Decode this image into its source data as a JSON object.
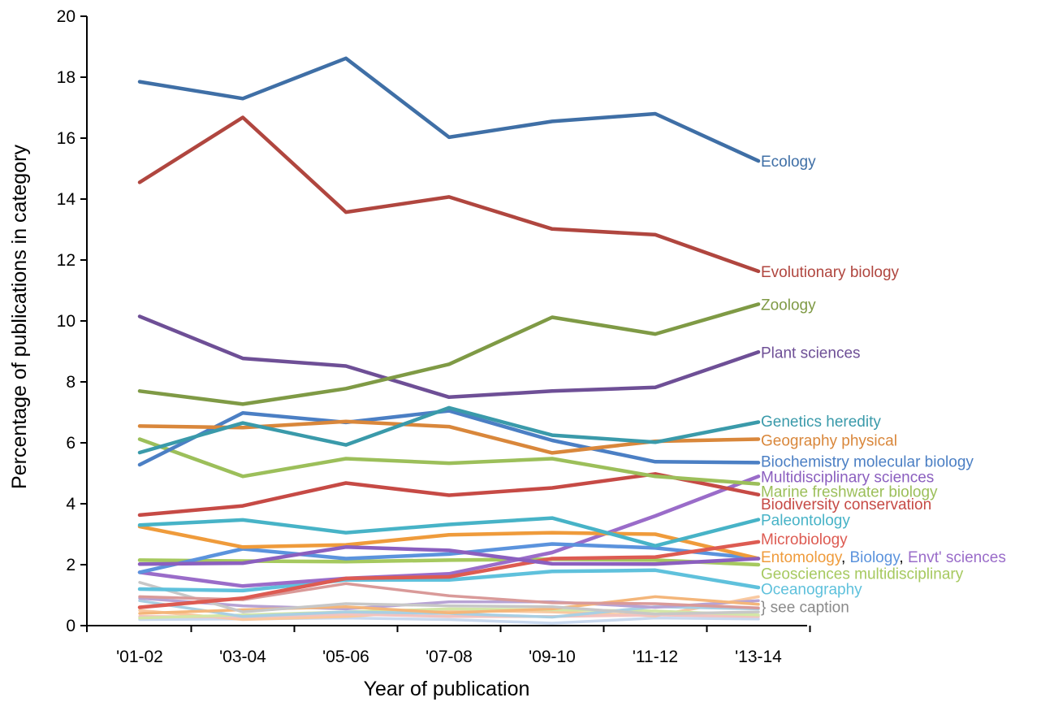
{
  "chart_data": {
    "type": "line",
    "xlabel": "Year of publication",
    "ylabel": "Percentage of publications in category",
    "categories": [
      "'01-02",
      "'03-04",
      "'05-06",
      "'07-08",
      "'09-10",
      "'11-12",
      "'13-14"
    ],
    "ylim": [
      0,
      20
    ],
    "yticks": [
      0,
      2,
      4,
      6,
      8,
      10,
      12,
      14,
      16,
      18,
      20
    ],
    "grid": false,
    "series": [
      {
        "name": "Ecology",
        "color": "#3f6fa6",
        "values": [
          17.85,
          17.3,
          18.62,
          16.03,
          16.55,
          16.8,
          15.25
        ]
      },
      {
        "name": "Evolutionary biology",
        "color": "#b0463f",
        "values": [
          14.55,
          16.68,
          13.57,
          14.07,
          13.02,
          12.83,
          11.63
        ]
      },
      {
        "name": "Zoology",
        "color": "#7f9a45",
        "values": [
          7.7,
          7.27,
          7.78,
          8.58,
          10.12,
          9.57,
          10.55
        ]
      },
      {
        "name": "Plant sciences",
        "color": "#6e4f96",
        "values": [
          10.15,
          8.77,
          8.52,
          7.5,
          7.7,
          7.82,
          8.98
        ]
      },
      {
        "name": "Genetics heredity",
        "color": "#3a9aaa",
        "values": [
          5.68,
          6.65,
          5.93,
          7.15,
          6.25,
          6.02,
          6.68
        ]
      },
      {
        "name": "Geography physical",
        "color": "#d9873b",
        "values": [
          6.55,
          6.5,
          6.7,
          6.53,
          5.67,
          6.05,
          6.12
        ]
      },
      {
        "name": "Biochemistry molecular biology",
        "color": "#4b7fc4",
        "values": [
          5.28,
          6.98,
          6.67,
          7.05,
          6.08,
          5.38,
          5.35
        ]
      },
      {
        "name": "Multidisciplinary sciences",
        "color": "#8b5fbf",
        "values": [
          2.02,
          2.05,
          2.58,
          2.47,
          2.03,
          2.02,
          2.2
        ]
      },
      {
        "name": "Marine freshwater biology",
        "color": "#9cbf5a",
        "values": [
          6.12,
          4.9,
          5.48,
          5.33,
          5.48,
          4.9,
          4.65
        ]
      },
      {
        "name": "Biodiversity conservation",
        "color": "#c64a45",
        "values": [
          3.63,
          3.93,
          4.68,
          4.28,
          4.52,
          4.98,
          4.3
        ]
      },
      {
        "name": "Paleontology",
        "color": "#47b3c7",
        "values": [
          3.3,
          3.47,
          3.05,
          3.32,
          3.53,
          2.62,
          3.48
        ]
      },
      {
        "name": "Microbiology",
        "color": "#dd5b52",
        "values": [
          0.6,
          0.9,
          1.55,
          1.6,
          2.2,
          2.25,
          2.75
        ]
      },
      {
        "name": "Entomology",
        "color": "#ef9b3b",
        "values": [
          3.25,
          2.58,
          2.65,
          2.98,
          3.05,
          3.0,
          2.2
        ]
      },
      {
        "name": "Biology",
        "color": "#5b93dd",
        "values": [
          1.75,
          2.52,
          2.2,
          2.35,
          2.68,
          2.55,
          2.2
        ]
      },
      {
        "name": "Envt' sciences",
        "color": "#9a6cc9",
        "values": [
          1.75,
          1.3,
          1.55,
          1.7,
          2.4,
          3.6,
          4.9
        ]
      },
      {
        "name": "Geosciences multidisciplinary",
        "color": "#a6c95f",
        "values": [
          2.15,
          2.12,
          2.1,
          2.15,
          2.18,
          2.15,
          2.0
        ]
      },
      {
        "name": "Oceanography",
        "color": "#5fc1dc",
        "values": [
          1.2,
          1.15,
          1.5,
          1.5,
          1.78,
          1.82,
          1.25
        ]
      },
      {
        "name": "",
        "color": "#d99a99",
        "values": [
          0.95,
          0.85,
          1.38,
          0.98,
          0.75,
          0.72,
          0.58
        ]
      },
      {
        "name": "",
        "color": "#c7c7c7",
        "values": [
          1.42,
          0.45,
          0.72,
          0.65,
          0.62,
          0.38,
          0.45
        ]
      },
      {
        "name": "",
        "color": "#f4b67a",
        "values": [
          0.4,
          0.52,
          0.62,
          0.42,
          0.55,
          0.95,
          0.7
        ]
      },
      {
        "name": "",
        "color": "#b7a3d4",
        "values": [
          0.9,
          0.65,
          0.55,
          0.78,
          0.78,
          0.6,
          0.82
        ]
      },
      {
        "name": "",
        "color": "#a9cfe3",
        "values": [
          0.82,
          0.3,
          0.45,
          0.4,
          0.28,
          0.62,
          0.55
        ]
      },
      {
        "name": "",
        "color": "#d3e6a6",
        "values": [
          0.25,
          0.35,
          0.45,
          0.55,
          0.52,
          0.48,
          0.35
        ]
      },
      {
        "name": "",
        "color": "#f2c3c0",
        "values": [
          0.3,
          0.28,
          0.38,
          0.3,
          0.3,
          0.35,
          0.3
        ]
      },
      {
        "name": "",
        "color": "#f9c9a0",
        "values": [
          0.5,
          0.2,
          0.3,
          0.5,
          0.45,
          0.32,
          0.95
        ]
      },
      {
        "name": "",
        "color": "#c9d9ef",
        "values": [
          0.2,
          0.22,
          0.25,
          0.2,
          0.08,
          0.25,
          0.22
        ]
      }
    ],
    "labels": [
      {
        "name": "ecology-label",
        "segments": [
          {
            "text": "Ecology",
            "color": "#3f6fa6"
          }
        ],
        "y": 15.25
      },
      {
        "name": "evolutionary-biology-label",
        "segments": [
          {
            "text": "Evolutionary biology",
            "color": "#b0463f"
          }
        ],
        "y": 11.63
      },
      {
        "name": "zoology-label",
        "segments": [
          {
            "text": "Zoology",
            "color": "#7f9a45"
          }
        ],
        "y": 10.55
      },
      {
        "name": "plant-sciences-label",
        "segments": [
          {
            "text": "Plant sciences",
            "color": "#6e4f96"
          }
        ],
        "y": 8.98
      },
      {
        "name": "genetics-heredity-label",
        "segments": [
          {
            "text": "Genetics heredity",
            "color": "#3a9aaa"
          }
        ],
        "y": 6.72
      },
      {
        "name": "geography-physical-label",
        "segments": [
          {
            "text": "Geography physical",
            "color": "#d9873b"
          }
        ],
        "y": 6.1
      },
      {
        "name": "biochemistry-label",
        "segments": [
          {
            "text": "Biochemistry molecular biology",
            "color": "#4b7fc4"
          }
        ],
        "y": 5.4
      },
      {
        "name": "multidisciplinary-label",
        "segments": [
          {
            "text": "Multidisciplinary sciences",
            "color": "#8b5fbf"
          }
        ],
        "y": 4.9
      },
      {
        "name": "marine-freshwater-label",
        "segments": [
          {
            "text": "Marine freshwater biology",
            "color": "#9cbf5a"
          }
        ],
        "y": 4.42
      },
      {
        "name": "biodiversity-label",
        "segments": [
          {
            "text": "Biodiversity conservation",
            "color": "#c64a45"
          }
        ],
        "y": 4.0
      },
      {
        "name": "paleontology-label",
        "segments": [
          {
            "text": "Paleontology",
            "color": "#47b3c7"
          }
        ],
        "y": 3.48
      },
      {
        "name": "microbiology-label",
        "segments": [
          {
            "text": "Microbiology",
            "color": "#dd5b52"
          }
        ],
        "y": 2.85
      },
      {
        "name": "entomology-biology-envt-label",
        "segments": [
          {
            "text": "Entomology",
            "color": "#ef9b3b"
          },
          {
            "text": ", ",
            "color": "#000000"
          },
          {
            "text": "Biology",
            "color": "#5b93dd"
          },
          {
            "text": ", ",
            "color": "#000000"
          },
          {
            "text": "Envt' sciences",
            "color": "#9a6cc9"
          }
        ],
        "y": 2.27
      },
      {
        "name": "geosciences-label",
        "segments": [
          {
            "text": "Geosciences multidisciplinary",
            "color": "#a6c95f"
          }
        ],
        "y": 1.72
      },
      {
        "name": "oceanography-label",
        "segments": [
          {
            "text": "Oceanography",
            "color": "#5fc1dc"
          }
        ],
        "y": 1.22
      },
      {
        "name": "see-caption-label",
        "segments": [
          {
            "text": "} see caption",
            "color": "#8a8a8a"
          }
        ],
        "y": 0.63
      }
    ]
  }
}
